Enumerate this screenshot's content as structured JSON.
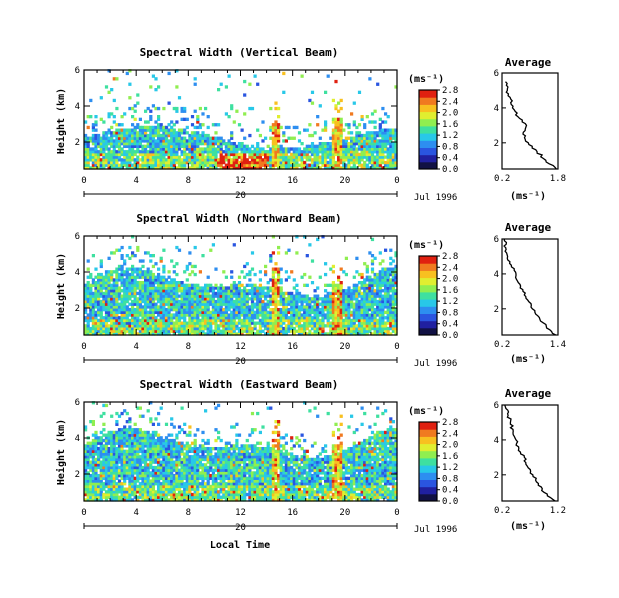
{
  "xlabel": "Local Time",
  "date_label": "Jul 1996",
  "colorbar_unit": "(ms⁻¹)",
  "chart_data": [
    {
      "type": "heatmap",
      "title": "Spectral Width (Vertical Beam)",
      "ylabel": "Height (km)",
      "xlim": [
        0,
        24
      ],
      "ylim": [
        0.5,
        6
      ],
      "x_ticks": [
        "0",
        "4",
        "8",
        "12",
        "16",
        "20",
        "0"
      ],
      "x_tick_values": [
        0,
        4,
        8,
        12,
        16,
        20,
        24
      ],
      "y_ticks": [
        "2",
        "4",
        "6"
      ],
      "y_tick_values": [
        2,
        4,
        6
      ],
      "day_label": "20",
      "colorbar_ticks": [
        "0.0",
        "0.4",
        "0.8",
        "1.2",
        "1.6",
        "2.0",
        "2.4",
        "2.8"
      ],
      "colorbar_range": [
        0,
        2.8
      ],
      "average_profile": {
        "title": "Average",
        "xlabel": "(ms⁻¹)",
        "xlim": [
          0.2,
          1.8
        ],
        "x_ticks": [
          "0.2",
          "1.8"
        ],
        "y_ticks": [
          "2",
          "4",
          "6"
        ],
        "height": [
          0.5,
          1.0,
          1.5,
          2.0,
          2.5,
          3.0,
          3.5,
          4.0,
          4.5,
          5.0,
          5.5
        ],
        "value": [
          1.75,
          1.45,
          1.2,
          0.95,
          0.8,
          0.9,
          0.65,
          0.5,
          0.45,
          0.35,
          0.3
        ]
      }
    },
    {
      "type": "heatmap",
      "title": "Spectral Width (Northward Beam)",
      "ylabel": "Height (km)",
      "xlim": [
        0,
        24
      ],
      "ylim": [
        0.5,
        6
      ],
      "x_ticks": [
        "0",
        "4",
        "8",
        "12",
        "16",
        "20",
        "0"
      ],
      "x_tick_values": [
        0,
        4,
        8,
        12,
        16,
        20,
        24
      ],
      "y_ticks": [
        "2",
        "4",
        "6"
      ],
      "y_tick_values": [
        2,
        4,
        6
      ],
      "day_label": "20",
      "colorbar_ticks": [
        "0.0",
        "0.4",
        "0.8",
        "1.2",
        "1.6",
        "2.0",
        "2.4",
        "2.8"
      ],
      "colorbar_range": [
        0,
        2.8
      ],
      "average_profile": {
        "title": "Average",
        "xlabel": "(ms⁻¹)",
        "xlim": [
          0.2,
          1.4
        ],
        "x_ticks": [
          "0.2",
          "1.4"
        ],
        "y_ticks": [
          "2",
          "4",
          "6"
        ],
        "height": [
          0.5,
          1.0,
          1.5,
          2.0,
          2.5,
          3.0,
          3.5,
          4.0,
          4.5,
          5.0,
          5.5,
          6.0
        ],
        "value": [
          1.35,
          1.15,
          1.0,
          0.85,
          0.75,
          0.65,
          0.55,
          0.5,
          0.4,
          0.32,
          0.28,
          0.25
        ]
      }
    },
    {
      "type": "heatmap",
      "title": "Spectral Width (Eastward Beam)",
      "ylabel": "Height (km)",
      "xlim": [
        0,
        24
      ],
      "ylim": [
        0.5,
        6
      ],
      "x_ticks": [
        "0",
        "4",
        "8",
        "12",
        "16",
        "20",
        "0"
      ],
      "x_tick_values": [
        0,
        4,
        8,
        12,
        16,
        20,
        24
      ],
      "y_ticks": [
        "2",
        "4",
        "6"
      ],
      "y_tick_values": [
        2,
        4,
        6
      ],
      "day_label": "20",
      "colorbar_ticks": [
        "0.0",
        "0.4",
        "0.8",
        "1.2",
        "1.6",
        "2.0",
        "2.4",
        "2.8"
      ],
      "colorbar_range": [
        0,
        2.8
      ],
      "average_profile": {
        "title": "Average",
        "xlabel": "(ms⁻¹)",
        "xlim": [
          0.2,
          1.2
        ],
        "x_ticks": [
          "0.2",
          "1.2"
        ],
        "y_ticks": [
          "2",
          "4",
          "6"
        ],
        "height": [
          0.5,
          1.0,
          1.5,
          2.0,
          2.5,
          3.0,
          3.5,
          4.0,
          4.5,
          5.0,
          5.5,
          6.0
        ],
        "value": [
          1.15,
          0.95,
          0.85,
          0.75,
          0.65,
          0.6,
          0.5,
          0.45,
          0.4,
          0.35,
          0.3,
          0.25
        ]
      }
    }
  ]
}
